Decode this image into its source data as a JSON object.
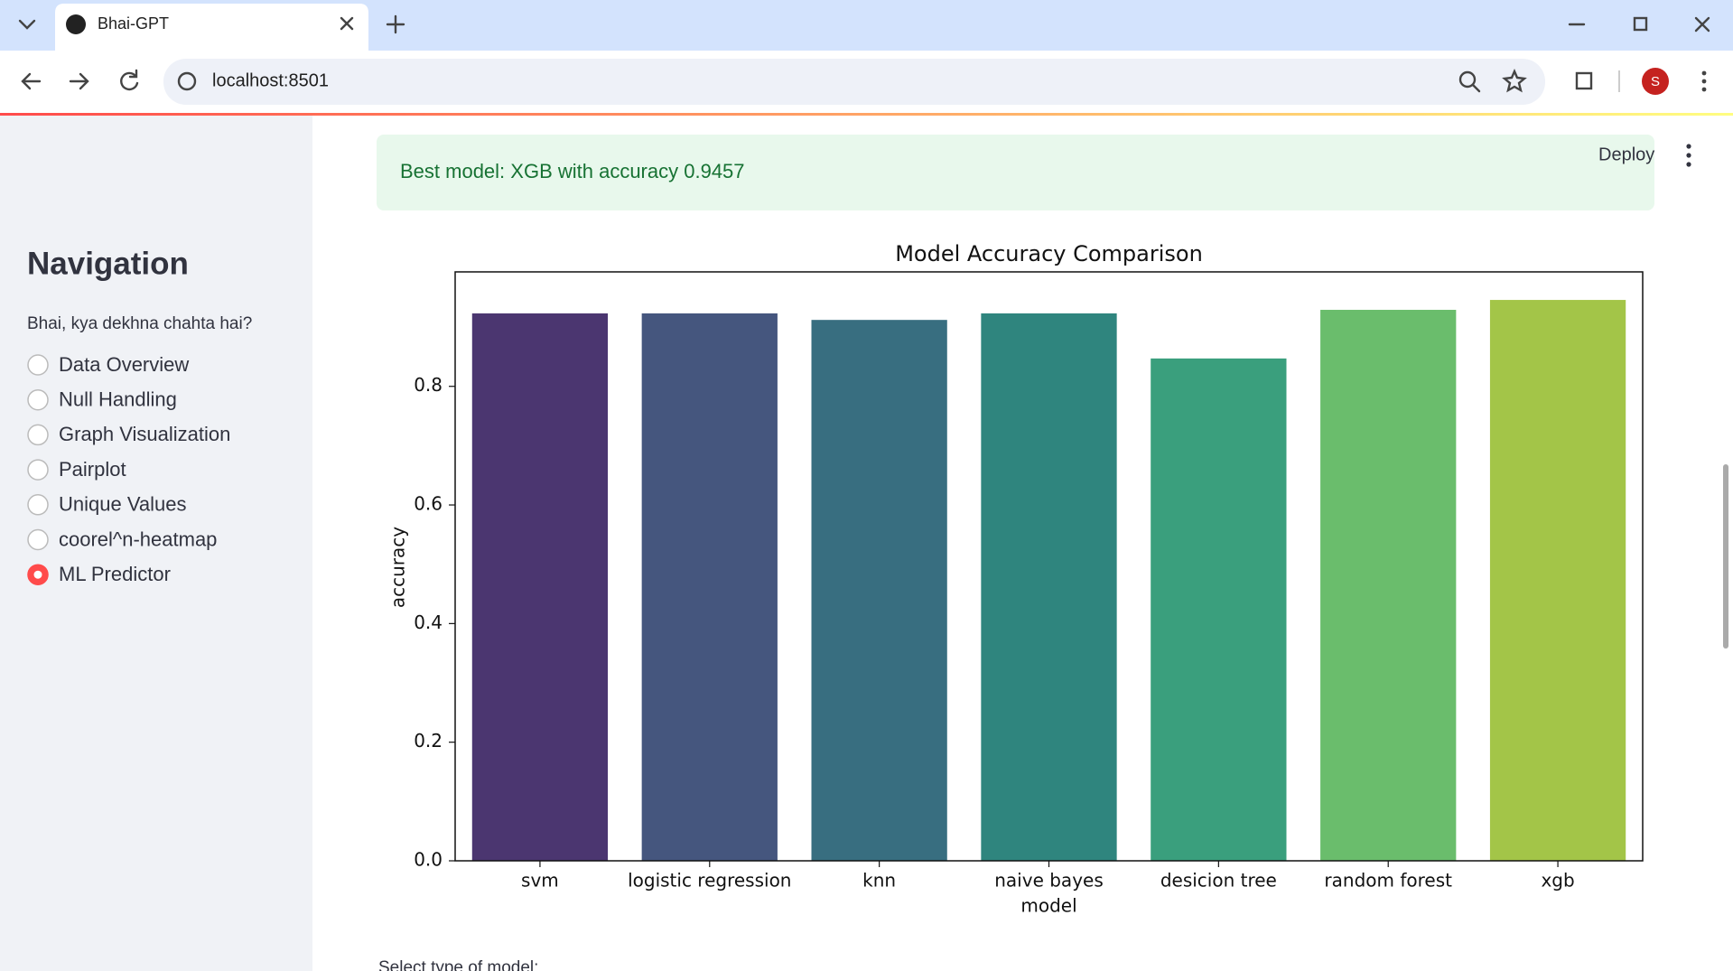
{
  "browser": {
    "tab_title": "Bhai-GPT",
    "url": "localhost:8501",
    "profile_initial": "S"
  },
  "header": {
    "deploy": "Deploy"
  },
  "sidebar": {
    "title": "Navigation",
    "question": "Bhai, kya dekhna chahta hai?",
    "options": [
      "Data Overview",
      "Null Handling",
      "Graph Visualization",
      "Pairplot",
      "Unique Values",
      "coorel^n-heatmap",
      "ML Predictor"
    ],
    "selected": 6
  },
  "alert": {
    "text": "Best model: XGB with accuracy 0.9457"
  },
  "chart_data": {
    "type": "bar",
    "title": "Model Accuracy Comparison",
    "x_label": "model",
    "y_label": "accuracy",
    "categories": [
      "svm",
      "logistic regression",
      "knn",
      "naive bayes",
      "desicion tree",
      "random forest",
      "xgb"
    ],
    "values": [
      0.923,
      0.923,
      0.912,
      0.923,
      0.847,
      0.929,
      0.9457
    ],
    "colors": [
      "#4b3670",
      "#45567e",
      "#386e80",
      "#2f857e",
      "#3a9f7d",
      "#6abd6c",
      "#a3c548"
    ],
    "ylim": [
      0,
      0.993
    ],
    "yticks": [
      {
        "value": 0,
        "label": "0.0"
      },
      0.2,
      0.4,
      0.6,
      0.8
    ]
  },
  "footer": {
    "text": "Select type of model:"
  }
}
